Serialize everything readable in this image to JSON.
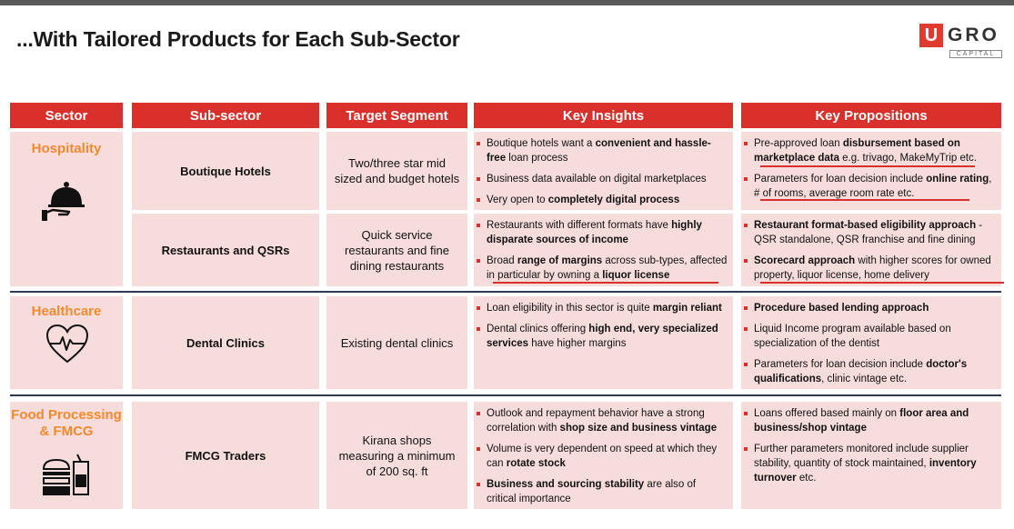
{
  "title": "...With Tailored Products for Each Sub-Sector",
  "logo": {
    "u": "U",
    "gro": "GRO",
    "capital": "CAPITAL"
  },
  "headers": {
    "sector": "Sector",
    "subsector": "Sub-sector",
    "target": "Target Segment",
    "insights": "Key Insights",
    "propositions": "Key Propositions"
  },
  "colors": {
    "header_red": "#d9302b",
    "cell_pink": "#f7dcdc",
    "sector_orange": "#f08a2e",
    "divider_navy": "#2c3a55"
  },
  "sectors": {
    "hospitality": {
      "name": "Hospitality",
      "icon": "cloche-serving-icon",
      "rows": {
        "boutique": {
          "subsector": "Boutique Hotels",
          "target": "Two/three star mid sized and budget hotels",
          "insights": [
            {
              "p1": "Boutique hotels want a ",
              "b1": "convenient and hassle-free",
              "p2": " loan process"
            },
            {
              "p1": "Business data available on digital marketplaces"
            },
            {
              "p1": "Very open to ",
              "b1": "completely digital process"
            }
          ],
          "props": [
            {
              "p1": "Pre-approved loan ",
              "b1": "disbursement based on marketplace data",
              "p2": " e.g. trivago, MakeMyTrip etc."
            },
            {
              "p1": "Parameters for loan decision include ",
              "b1": "online rating",
              "p2": ", # of rooms, average room rate etc."
            }
          ]
        },
        "restaurants": {
          "subsector": "Restaurants and QSRs",
          "target": "Quick service restaurants and fine dining restaurants",
          "insights": [
            {
              "p1": "Restaurants with different formats have ",
              "b1": "highly disparate sources of income"
            },
            {
              "p1": "Broad ",
              "b1": "range of margins",
              "p2": " across sub-types, affected in particular by owning a ",
              "b2": "liquor license"
            }
          ],
          "props": [
            {
              "b1": "Restaurant format-based eligibility approach",
              "p2": " - QSR standalone, QSR franchise and fine dining"
            },
            {
              "b1": "Scorecard approach",
              "p2": " with higher scores for owned property, liquor license, home delivery"
            }
          ]
        }
      }
    },
    "healthcare": {
      "name": "Healthcare",
      "icon": "heart-pulse-icon",
      "rows": {
        "dental": {
          "subsector": "Dental Clinics",
          "target": "Existing dental clinics",
          "insights": [
            {
              "p1": "Loan eligibility in this sector is quite ",
              "b1": "margin reliant"
            },
            {
              "p1": "Dental clinics offering ",
              "b1": "high end, very specialized services",
              "p2": " have higher margins"
            }
          ],
          "props": [
            {
              "b1": "Procedure based lending approach"
            },
            {
              "p1": "Liquid Income program available based on specialization of the dentist"
            },
            {
              "p1": "Parameters for loan decision include ",
              "b1": "doctor's qualifications",
              "p2": ", clinic vintage etc."
            }
          ]
        }
      }
    },
    "fmcg": {
      "name1": "Food Processing",
      "name2": "& FMCG",
      "icon": "food-burger-icon",
      "rows": {
        "traders": {
          "subsector": "FMCG Traders",
          "target": "Kirana shops measuring a minimum of 200 sq. ft",
          "insights": [
            {
              "p1": "Outlook and repayment behavior have a strong correlation with ",
              "b1": "shop size and business vintage"
            },
            {
              "p1": "Volume is very dependent on speed at which they can ",
              "b1": "rotate stock"
            },
            {
              "b1": "Business and sourcing stability",
              "p2": " are also of critical importance"
            }
          ],
          "props": [
            {
              "p1": "Loans offered based mainly on ",
              "b1": "floor area and business/shop vintage"
            },
            {
              "p1": "Further parameters monitored include supplier stability, quantity of stock maintained, ",
              "b1": "inventory turnover",
              "p2": " etc."
            }
          ]
        }
      }
    }
  }
}
